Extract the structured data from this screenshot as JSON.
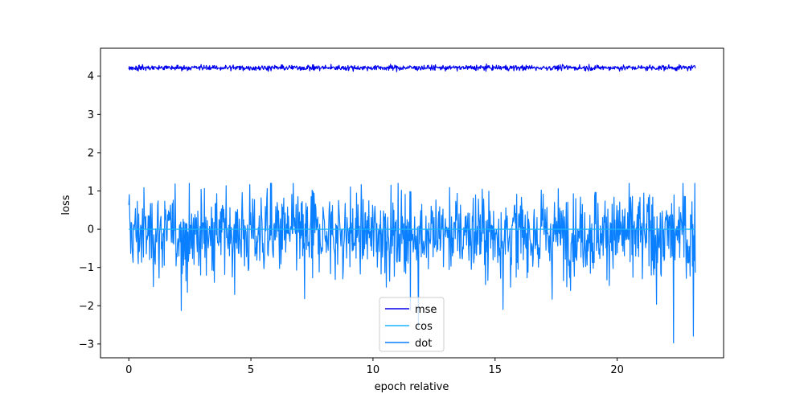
{
  "chart_data": {
    "type": "line",
    "title": "",
    "xlabel": "epoch relative",
    "ylabel": "loss",
    "xlim": [
      -1.16,
      24.36
    ],
    "ylim": [
      -3.36,
      4.73
    ],
    "x_range": [
      0,
      23.2
    ],
    "xticks": [
      0,
      5,
      10,
      15,
      20
    ],
    "yticks": [
      -3,
      -2,
      -1,
      0,
      1,
      2,
      3,
      4
    ],
    "grid": false,
    "legend_position": "lower center",
    "series": [
      {
        "name": "mse",
        "color": "#0000ee",
        "mean": 4.22,
        "spread": 0.035,
        "min": 4.05,
        "max": 4.32,
        "n_points": 1200
      },
      {
        "name": "cos",
        "color": "#1ab5ff",
        "mean": 0.0,
        "spread": 0.0,
        "min": 0.0,
        "max": 0.0,
        "n_points": 1200
      },
      {
        "name": "dot",
        "color": "#0a7fff",
        "mean": -0.1,
        "spread": 0.55,
        "min": -2.97,
        "max": 1.2,
        "n_points": 1200
      }
    ]
  }
}
